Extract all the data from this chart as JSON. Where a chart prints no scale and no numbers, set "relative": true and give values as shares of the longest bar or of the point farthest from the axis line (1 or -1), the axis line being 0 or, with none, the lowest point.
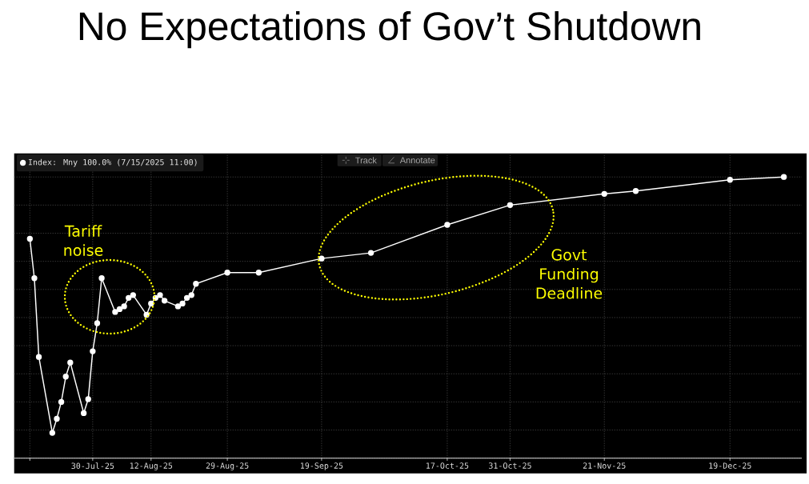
{
  "chart_data": {
    "type": "line",
    "title": "No Expectations of Gov’t Shutdown",
    "annotations": [
      "Tariff noise",
      "Govt Funding Deadline",
      "Track",
      "Annotate"
    ],
    "x": [
      "2025-07-16",
      "2025-07-17",
      "2025-07-18",
      "2025-07-21",
      "2025-07-22",
      "2025-07-23",
      "2025-07-24",
      "2025-07-25",
      "2025-07-28",
      "2025-07-29",
      "2025-07-30",
      "2025-07-31",
      "2025-08-01",
      "2025-08-04",
      "2025-08-05",
      "2025-08-06",
      "2025-08-07",
      "2025-08-08",
      "2025-08-11",
      "2025-08-12",
      "2025-08-13",
      "2025-08-14",
      "2025-08-15",
      "2025-08-18",
      "2025-08-19",
      "2025-08-20",
      "2025-08-21",
      "2025-08-22",
      "2025-08-29",
      "2025-09-05",
      "2025-09-19",
      "2025-09-30",
      "2025-10-17",
      "2025-10-31",
      "2025-11-21",
      "2025-11-28",
      "2025-12-19",
      "2025-12-31"
    ],
    "series": [
      {
        "name": "Index: Mny 100.0% (7/15/2025 11:00)",
        "color": "#ffffff",
        "values": [
          0.78,
          0.64,
          0.36,
          0.09,
          0.14,
          0.2,
          0.29,
          0.34,
          0.16,
          0.21,
          0.38,
          0.48,
          0.64,
          0.52,
          0.53,
          0.54,
          0.57,
          0.58,
          0.51,
          0.55,
          0.57,
          0.58,
          0.56,
          0.54,
          0.55,
          0.57,
          0.58,
          0.62,
          0.66,
          0.66,
          0.71,
          0.73,
          0.83,
          0.9,
          0.94,
          0.95,
          0.99,
          1.0
        ]
      }
    ],
    "relative": true,
    "xlim": [
      "2025-07-12T12:00",
      "2026-01-04"
    ],
    "xticks": [
      {
        "value": "2025-07-16",
        "label": null
      },
      {
        "value": "2025-07-30",
        "label": "30-Jul-25"
      },
      {
        "value": "2025-08-12",
        "label": "12-Aug-25"
      },
      {
        "value": "2025-08-29",
        "label": "29-Aug-25"
      },
      {
        "value": "2025-09-19",
        "label": "19-Sep-25"
      },
      {
        "value": "2025-10-17",
        "label": "17-Oct-25"
      },
      {
        "value": "2025-10-31",
        "label": "31-Oct-25"
      },
      {
        "value": "2025-11-21",
        "label": "21-Nov-25"
      },
      {
        "value": "2025-12-19",
        "label": "19-Dec-25"
      }
    ],
    "grid": true,
    "legend": "top left",
    "marker": "circle",
    "line_style": "solid"
  }
}
